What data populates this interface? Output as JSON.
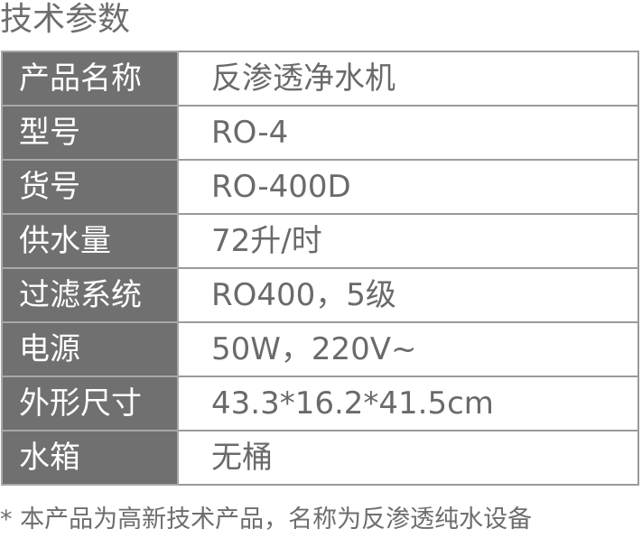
{
  "title": "技术参数",
  "rows": [
    {
      "label": "产品名称",
      "value": "反渗透净水机"
    },
    {
      "label": "型号",
      "value": "RO-4"
    },
    {
      "label": "货号",
      "value": "RO-400D"
    },
    {
      "label": "供水量",
      "value": "72升/时"
    },
    {
      "label": "过滤系统",
      "value": "RO400，5级"
    },
    {
      "label": "电源",
      "value": "50W，220V~"
    },
    {
      "label": "外形尺寸",
      "value": "43.3*16.2*41.5cm"
    },
    {
      "label": "水箱",
      "value": "无桶"
    }
  ],
  "note": "*  本产品为高新技术产品，名称为反渗透纯水设备"
}
